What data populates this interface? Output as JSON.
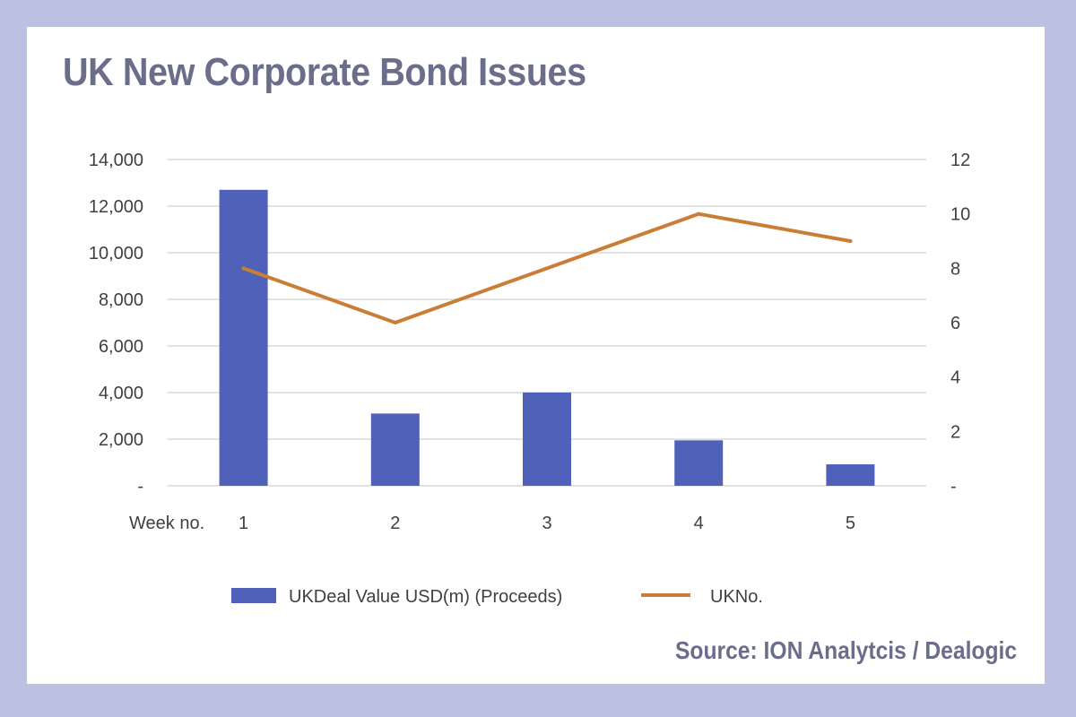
{
  "source": "Source: ION Analytcis / Dealogic",
  "chart_data": {
    "type": "bar",
    "title": "UK New Corporate Bond Issues",
    "xlabel": "Week no.",
    "categories": [
      "1",
      "2",
      "3",
      "4",
      "5"
    ],
    "y_left": {
      "range": [
        0,
        14000
      ],
      "ticks": [
        "-",
        "2,000",
        "4,000",
        "6,000",
        "8,000",
        "10,000",
        "12,000",
        "14,000"
      ]
    },
    "y_right": {
      "range": [
        0,
        12
      ],
      "ticks": [
        "-",
        "2",
        "4",
        "6",
        "8",
        "10",
        "12"
      ]
    },
    "series": [
      {
        "name": "UKDeal Value USD(m) (Proceeds)",
        "type": "bar",
        "axis": "left",
        "color": "#4f61b8",
        "values": [
          12700,
          3100,
          4000,
          1950,
          920
        ]
      },
      {
        "name": "UKNo.",
        "type": "line",
        "axis": "right",
        "color": "#c97d35",
        "values": [
          8,
          6,
          8,
          10,
          9
        ]
      }
    ],
    "grid": true,
    "legend": "bottom"
  }
}
